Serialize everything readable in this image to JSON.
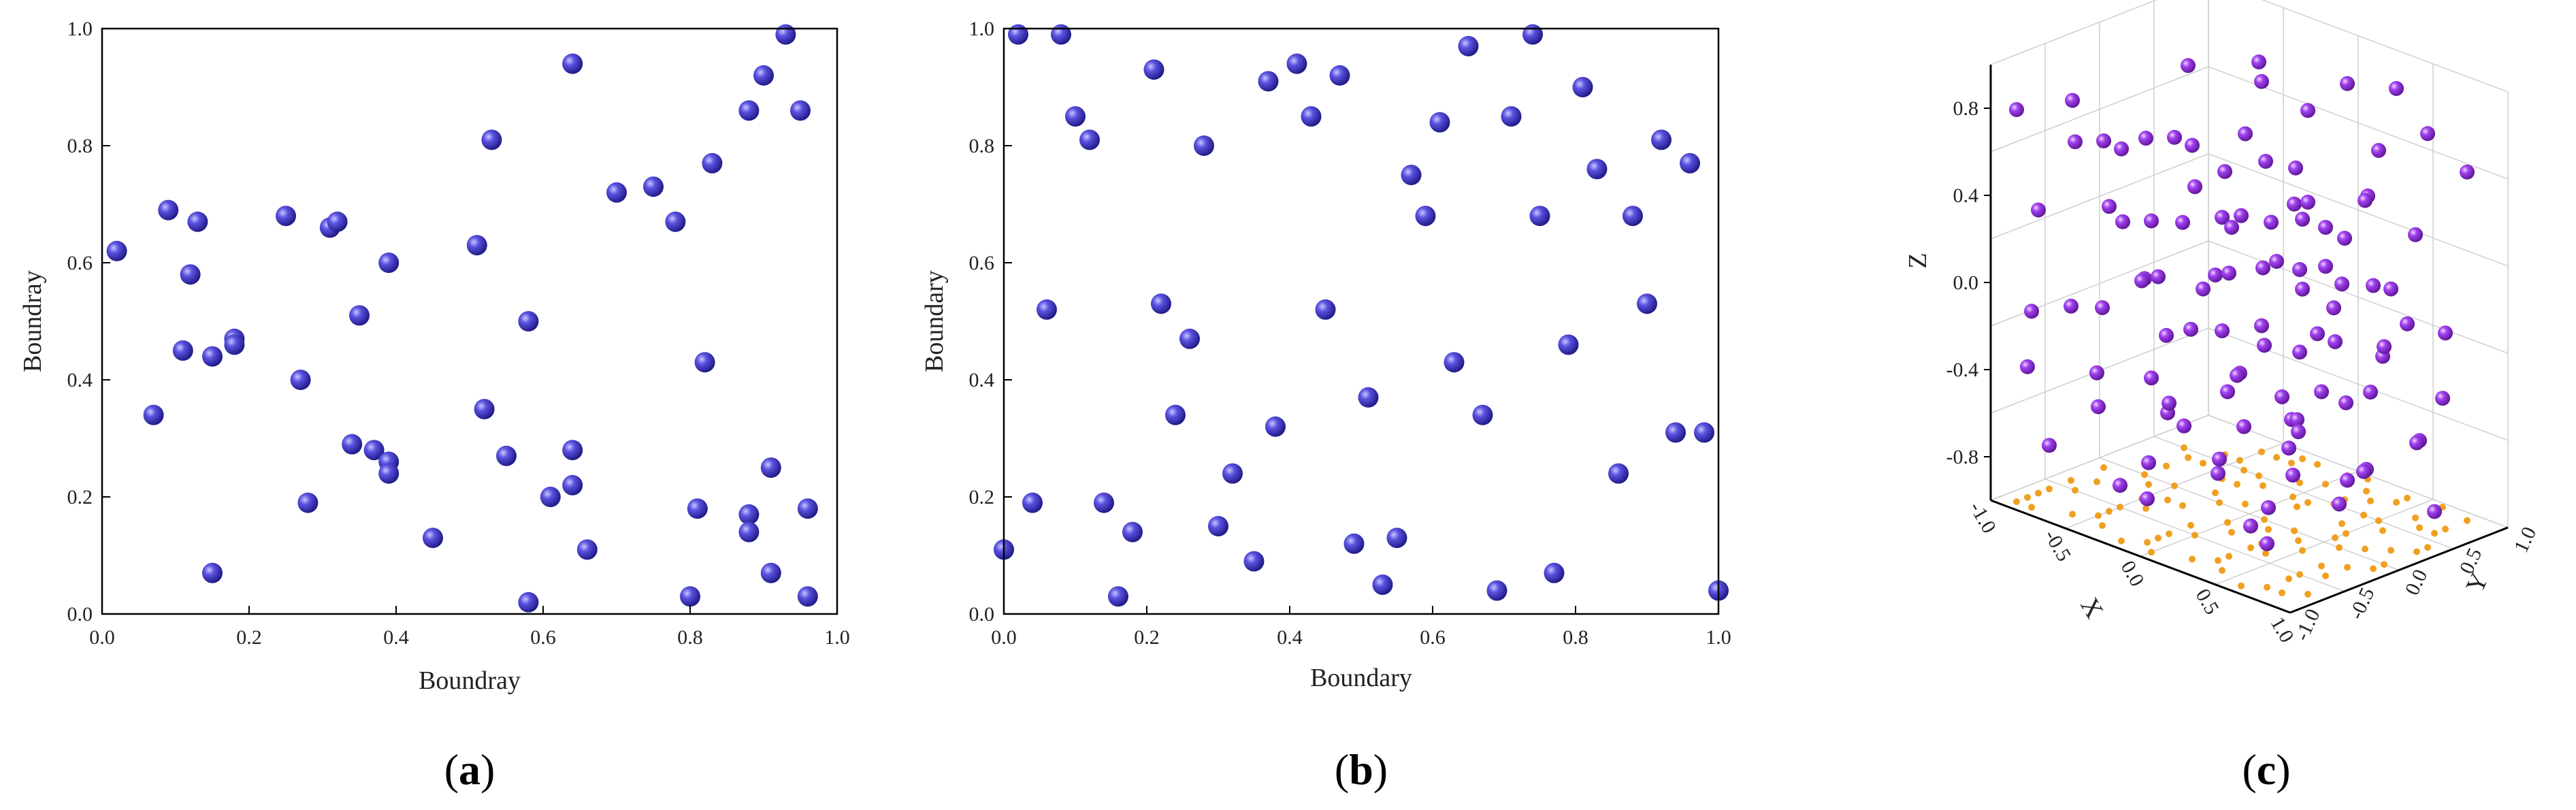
{
  "figure": {
    "labels": [
      "a",
      "b",
      "c"
    ]
  },
  "chart_data": [
    {
      "type": "scatter",
      "panel": "a",
      "xlabel": "Boundray",
      "ylabel": "Boundray",
      "xlim": [
        0,
        1
      ],
      "ylim": [
        0,
        1
      ],
      "xticks": [
        "0.0",
        "0.2",
        "0.4",
        "0.6",
        "0.8",
        "1.0"
      ],
      "yticks": [
        "0.0",
        "0.2",
        "0.4",
        "0.6",
        "0.8",
        "1.0"
      ],
      "marker_color": "#3a33b8",
      "points": [
        [
          0.02,
          0.62
        ],
        [
          0.09,
          0.69
        ],
        [
          0.13,
          0.67
        ],
        [
          0.12,
          0.58
        ],
        [
          0.11,
          0.45
        ],
        [
          0.15,
          0.44
        ],
        [
          0.07,
          0.34
        ],
        [
          0.18,
          0.47
        ],
        [
          0.18,
          0.46
        ],
        [
          0.15,
          0.07
        ],
        [
          0.25,
          0.68
        ],
        [
          0.31,
          0.66
        ],
        [
          0.32,
          0.67
        ],
        [
          0.27,
          0.4
        ],
        [
          0.28,
          0.19
        ],
        [
          0.35,
          0.51
        ],
        [
          0.39,
          0.6
        ],
        [
          0.34,
          0.29
        ],
        [
          0.37,
          0.28
        ],
        [
          0.39,
          0.26
        ],
        [
          0.39,
          0.24
        ],
        [
          0.45,
          0.13
        ],
        [
          0.51,
          0.63
        ],
        [
          0.53,
          0.81
        ],
        [
          0.52,
          0.35
        ],
        [
          0.55,
          0.27
        ],
        [
          0.58,
          0.5
        ],
        [
          0.61,
          0.2
        ],
        [
          0.64,
          0.94
        ],
        [
          0.64,
          0.28
        ],
        [
          0.64,
          0.22
        ],
        [
          0.66,
          0.11
        ],
        [
          0.58,
          0.02
        ],
        [
          0.7,
          0.72
        ],
        [
          0.75,
          0.73
        ],
        [
          0.78,
          0.67
        ],
        [
          0.83,
          0.77
        ],
        [
          0.82,
          0.43
        ],
        [
          0.81,
          0.18
        ],
        [
          0.8,
          0.03
        ],
        [
          0.88,
          0.86
        ],
        [
          0.9,
          0.92
        ],
        [
          0.93,
          0.99
        ],
        [
          0.95,
          0.86
        ],
        [
          0.91,
          0.25
        ],
        [
          0.88,
          0.17
        ],
        [
          0.88,
          0.14
        ],
        [
          0.91,
          0.07
        ],
        [
          0.96,
          0.18
        ],
        [
          0.96,
          0.03
        ]
      ]
    },
    {
      "type": "scatter",
      "panel": "b",
      "xlabel": "Boundary",
      "ylabel": "Boundary",
      "xlim": [
        0,
        1
      ],
      "ylim": [
        0,
        1
      ],
      "xticks": [
        "0.0",
        "0.2",
        "0.4",
        "0.6",
        "0.8",
        "1.0"
      ],
      "yticks": [
        "0.0",
        "0.2",
        "0.4",
        "0.6",
        "0.8",
        "1.0"
      ],
      "marker_color": "#3a33b8",
      "points": [
        [
          0.02,
          0.99
        ],
        [
          0.08,
          0.99
        ],
        [
          0.1,
          0.85
        ],
        [
          0.12,
          0.81
        ],
        [
          0.21,
          0.93
        ],
        [
          0.28,
          0.8
        ],
        [
          0.06,
          0.52
        ],
        [
          0.22,
          0.53
        ],
        [
          0.26,
          0.47
        ],
        [
          0.24,
          0.34
        ],
        [
          0.0,
          0.11
        ],
        [
          0.04,
          0.19
        ],
        [
          0.14,
          0.19
        ],
        [
          0.18,
          0.14
        ],
        [
          0.16,
          0.03
        ],
        [
          0.3,
          0.15
        ],
        [
          0.32,
          0.24
        ],
        [
          0.35,
          0.09
        ],
        [
          0.37,
          0.91
        ],
        [
          0.41,
          0.94
        ],
        [
          0.43,
          0.85
        ],
        [
          0.47,
          0.92
        ],
        [
          0.38,
          0.32
        ],
        [
          0.45,
          0.52
        ],
        [
          0.51,
          0.37
        ],
        [
          0.49,
          0.12
        ],
        [
          0.55,
          0.13
        ],
        [
          0.53,
          0.05
        ],
        [
          0.57,
          0.75
        ],
        [
          0.59,
          0.68
        ],
        [
          0.61,
          0.84
        ],
        [
          0.65,
          0.97
        ],
        [
          0.63,
          0.43
        ],
        [
          0.67,
          0.34
        ],
        [
          0.69,
          0.04
        ],
        [
          0.71,
          0.85
        ],
        [
          0.74,
          0.99
        ],
        [
          0.75,
          0.68
        ],
        [
          0.79,
          0.46
        ],
        [
          0.77,
          0.07
        ],
        [
          0.81,
          0.9
        ],
        [
          0.83,
          0.76
        ],
        [
          0.88,
          0.68
        ],
        [
          0.9,
          0.53
        ],
        [
          0.86,
          0.24
        ],
        [
          0.92,
          0.81
        ],
        [
          0.96,
          0.77
        ],
        [
          0.94,
          0.31
        ],
        [
          0.98,
          0.31
        ],
        [
          1.0,
          0.04
        ]
      ]
    },
    {
      "type": "scatter3d",
      "panel": "c",
      "xlabel": "X",
      "ylabel": "Y",
      "zlabel": "Z",
      "xlim": [
        -1.0,
        1.0
      ],
      "ylim": [
        -1.0,
        1.0
      ],
      "zlim": [
        -1.0,
        1.0
      ],
      "xticks": [
        "-1.0",
        "-0.5",
        "0.0",
        "0.5",
        "1.0"
      ],
      "yticks": [
        "-1.0",
        "-0.5",
        "0.0",
        "0.5",
        "1.0"
      ],
      "zticks": [
        "-0.8",
        "-0.4",
        "0.0",
        "0.4",
        "0.8"
      ],
      "marker_color": "#8a2be2",
      "projection_color": "#f0a020",
      "points": [
        [
          -0.9,
          -0.9,
          0.8
        ],
        [
          -0.6,
          -0.8,
          0.9
        ],
        [
          -0.2,
          -0.9,
          0.8
        ],
        [
          0.2,
          -0.8,
          0.9
        ],
        [
          0.6,
          -0.9,
          0.7
        ],
        [
          0.9,
          -0.7,
          0.8
        ],
        [
          -0.8,
          -0.5,
          0.6
        ],
        [
          -0.4,
          -0.4,
          0.7
        ],
        [
          0.0,
          -0.5,
          0.6
        ],
        [
          0.4,
          -0.4,
          0.8
        ],
        [
          0.8,
          -0.4,
          0.6
        ],
        [
          -0.9,
          -0.1,
          0.5
        ],
        [
          -0.5,
          0.0,
          0.6
        ],
        [
          -0.1,
          0.1,
          0.7
        ],
        [
          0.3,
          0.0,
          0.5
        ],
        [
          0.7,
          0.1,
          0.6
        ],
        [
          -0.7,
          0.4,
          0.8
        ],
        [
          -0.3,
          0.5,
          0.9
        ],
        [
          0.1,
          0.4,
          0.8
        ],
        [
          0.5,
          0.5,
          0.7
        ],
        [
          0.9,
          0.4,
          0.9
        ],
        [
          -0.5,
          0.8,
          0.7
        ],
        [
          0.0,
          0.9,
          0.8
        ],
        [
          0.4,
          0.8,
          0.9
        ],
        [
          0.8,
          0.9,
          0.6
        ],
        [
          -0.9,
          -0.7,
          0.3
        ],
        [
          -0.5,
          -0.6,
          0.4
        ],
        [
          -0.1,
          -0.7,
          0.2
        ],
        [
          0.3,
          -0.6,
          0.3
        ],
        [
          0.7,
          -0.5,
          0.4
        ],
        [
          -0.7,
          -0.2,
          0.2
        ],
        [
          -0.3,
          -0.2,
          0.3
        ],
        [
          0.1,
          -0.3,
          0.4
        ],
        [
          0.5,
          -0.2,
          0.2
        ],
        [
          0.9,
          -0.1,
          0.3
        ],
        [
          -0.8,
          0.2,
          0.1
        ],
        [
          -0.4,
          0.3,
          0.2
        ],
        [
          0.0,
          0.2,
          0.3
        ],
        [
          0.4,
          0.3,
          0.1
        ],
        [
          0.8,
          0.2,
          0.2
        ],
        [
          -0.6,
          0.6,
          0.3
        ],
        [
          -0.2,
          0.7,
          0.4
        ],
        [
          0.2,
          0.6,
          0.2
        ],
        [
          0.6,
          0.7,
          0.3
        ],
        [
          -0.3,
          0.9,
          0.1
        ],
        [
          0.1,
          0.95,
          0.3
        ],
        [
          -0.8,
          -0.9,
          -0.1
        ],
        [
          -0.4,
          -0.8,
          0.0
        ],
        [
          0.0,
          -0.9,
          -0.2
        ],
        [
          0.4,
          -0.8,
          0.1
        ],
        [
          0.8,
          -0.8,
          -0.1
        ],
        [
          -0.9,
          -0.4,
          -0.2
        ],
        [
          -0.5,
          -0.3,
          0.0
        ],
        [
          -0.1,
          -0.4,
          -0.1
        ],
        [
          0.3,
          -0.3,
          0.0
        ],
        [
          0.7,
          -0.3,
          -0.2
        ],
        [
          -0.7,
          0.0,
          -0.1
        ],
        [
          -0.3,
          0.1,
          0.0
        ],
        [
          0.1,
          0.0,
          -0.2
        ],
        [
          0.5,
          0.1,
          -0.1
        ],
        [
          0.9,
          0.0,
          0.0
        ],
        [
          -0.6,
          0.4,
          -0.2
        ],
        [
          -0.2,
          0.4,
          0.0
        ],
        [
          0.2,
          0.5,
          -0.1
        ],
        [
          0.6,
          0.4,
          -0.2
        ],
        [
          -0.4,
          0.8,
          -0.1
        ],
        [
          0.0,
          0.7,
          0.0
        ],
        [
          0.4,
          0.9,
          -0.2
        ],
        [
          0.8,
          0.7,
          -0.1
        ],
        [
          -0.9,
          -0.8,
          -0.4
        ],
        [
          -0.5,
          -0.7,
          -0.5
        ],
        [
          -0.1,
          -0.6,
          -0.4
        ],
        [
          0.3,
          -0.7,
          -0.6
        ],
        [
          0.7,
          -0.6,
          -0.4
        ],
        [
          -0.8,
          -0.3,
          -0.5
        ],
        [
          -0.4,
          -0.2,
          -0.6
        ],
        [
          0.0,
          -0.2,
          -0.4
        ],
        [
          0.4,
          -0.1,
          -0.5
        ],
        [
          0.8,
          -0.2,
          -0.6
        ],
        [
          -0.7,
          0.2,
          -0.4
        ],
        [
          -0.3,
          0.3,
          -0.5
        ],
        [
          0.1,
          0.3,
          -0.6
        ],
        [
          0.5,
          0.2,
          -0.4
        ],
        [
          0.9,
          0.3,
          -0.5
        ],
        [
          -0.5,
          0.6,
          -0.6
        ],
        [
          -0.1,
          0.6,
          -0.4
        ],
        [
          0.3,
          0.7,
          -0.5
        ],
        [
          0.7,
          0.6,
          -0.6
        ],
        [
          -0.2,
          0.9,
          -0.4
        ],
        [
          0.6,
          0.95,
          -0.5
        ],
        [
          -0.9,
          -0.6,
          -0.8
        ],
        [
          -0.5,
          -0.5,
          -0.9
        ],
        [
          -0.1,
          -0.8,
          -0.8
        ],
        [
          0.3,
          -0.4,
          -0.9
        ],
        [
          0.7,
          -0.8,
          -0.8
        ],
        [
          -0.6,
          -0.1,
          -0.9
        ],
        [
          -0.2,
          0.0,
          -0.8
        ],
        [
          0.2,
          -0.1,
          -0.9
        ],
        [
          0.6,
          0.0,
          -0.8
        ],
        [
          -0.8,
          0.5,
          -0.9
        ],
        [
          -0.4,
          0.5,
          -0.8
        ],
        [
          0.0,
          0.4,
          -0.9
        ],
        [
          0.4,
          0.5,
          -0.8
        ],
        [
          0.8,
          0.6,
          -0.9
        ],
        [
          -0.3,
          0.8,
          -0.8
        ],
        [
          0.2,
          0.8,
          -0.9
        ]
      ]
    }
  ]
}
